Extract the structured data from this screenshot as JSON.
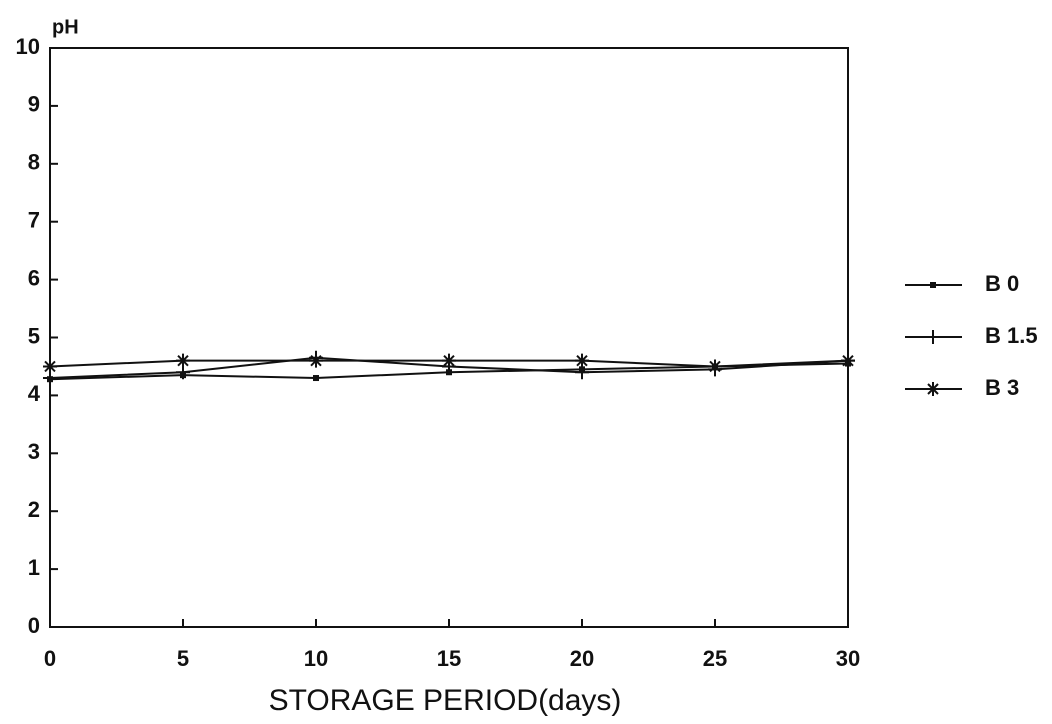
{
  "chart_data": {
    "type": "line",
    "ylabel": "pH",
    "xlabel": "STORAGE PERIOD(days)",
    "x": [
      0,
      5,
      10,
      15,
      20,
      25,
      30
    ],
    "series": [
      {
        "name": "B 0",
        "color": "#111111",
        "marker": "square",
        "values": [
          4.28,
          4.35,
          4.3,
          4.4,
          4.45,
          4.5,
          4.55
        ]
      },
      {
        "name": "B 1.5",
        "color": "#111111",
        "marker": "plus",
        "values": [
          4.3,
          4.4,
          4.65,
          4.5,
          4.4,
          4.45,
          4.6
        ]
      },
      {
        "name": "B 3",
        "color": "#111111",
        "marker": "star",
        "values": [
          4.5,
          4.6,
          4.6,
          4.6,
          4.6,
          4.5,
          4.6
        ]
      }
    ],
    "xlim": [
      0,
      30
    ],
    "xticks": [
      0,
      5,
      10,
      15,
      20,
      25,
      30
    ],
    "ylim": [
      0,
      10
    ],
    "yticks": [
      0,
      1,
      2,
      3,
      4,
      5,
      6,
      7,
      8,
      9,
      10
    ],
    "legend": "right"
  }
}
